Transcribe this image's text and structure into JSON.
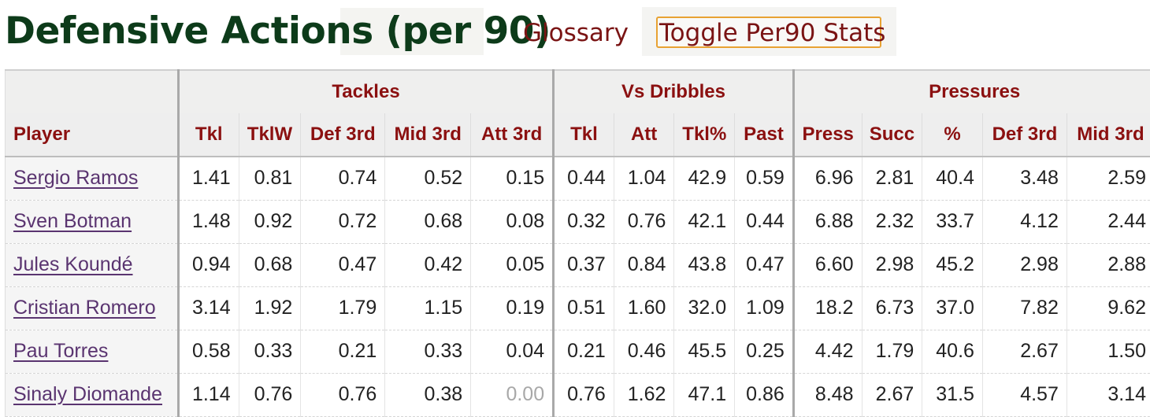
{
  "header": {
    "title": "Defensive Actions (per 90)",
    "glossary_link": "Glossary",
    "toggle_button": "Toggle Per90 Stats"
  },
  "table": {
    "groups": [
      "Tackles",
      "Vs Dribbles",
      "Pressures"
    ],
    "columns": [
      "Player",
      "Tkl",
      "TklW",
      "Def 3rd",
      "Mid 3rd",
      "Att 3rd",
      "Tkl",
      "Att",
      "Tkl%",
      "Past",
      "Press",
      "Succ",
      "%",
      "Def 3rd",
      "Mid 3rd"
    ],
    "rows": [
      [
        "Sergio Ramos",
        "1.41",
        "0.81",
        "0.74",
        "0.52",
        "0.15",
        "0.44",
        "1.04",
        "42.9",
        "0.59",
        "6.96",
        "2.81",
        "40.4",
        "3.48",
        "2.59"
      ],
      [
        "Sven Botman",
        "1.48",
        "0.92",
        "0.72",
        "0.68",
        "0.08",
        "0.32",
        "0.76",
        "42.1",
        "0.44",
        "6.88",
        "2.32",
        "33.7",
        "4.12",
        "2.44"
      ],
      [
        "Jules Koundé",
        "0.94",
        "0.68",
        "0.47",
        "0.42",
        "0.05",
        "0.37",
        "0.84",
        "43.8",
        "0.47",
        "6.60",
        "2.98",
        "45.2",
        "2.98",
        "2.88"
      ],
      [
        "Cristian Romero",
        "3.14",
        "1.92",
        "1.79",
        "1.15",
        "0.19",
        "0.51",
        "1.60",
        "32.0",
        "1.09",
        "18.2",
        "6.73",
        "37.0",
        "7.82",
        "9.62"
      ],
      [
        "Pau Torres",
        "0.58",
        "0.33",
        "0.21",
        "0.33",
        "0.04",
        "0.21",
        "0.46",
        "45.5",
        "0.25",
        "4.42",
        "1.79",
        "40.6",
        "2.67",
        "1.50"
      ],
      [
        "Sinaly Diomande",
        "1.14",
        "0.76",
        "0.76",
        "0.38",
        "0.00",
        "0.76",
        "1.62",
        "47.1",
        "0.86",
        "8.48",
        "2.67",
        "31.5",
        "4.57",
        "3.14"
      ]
    ]
  }
}
